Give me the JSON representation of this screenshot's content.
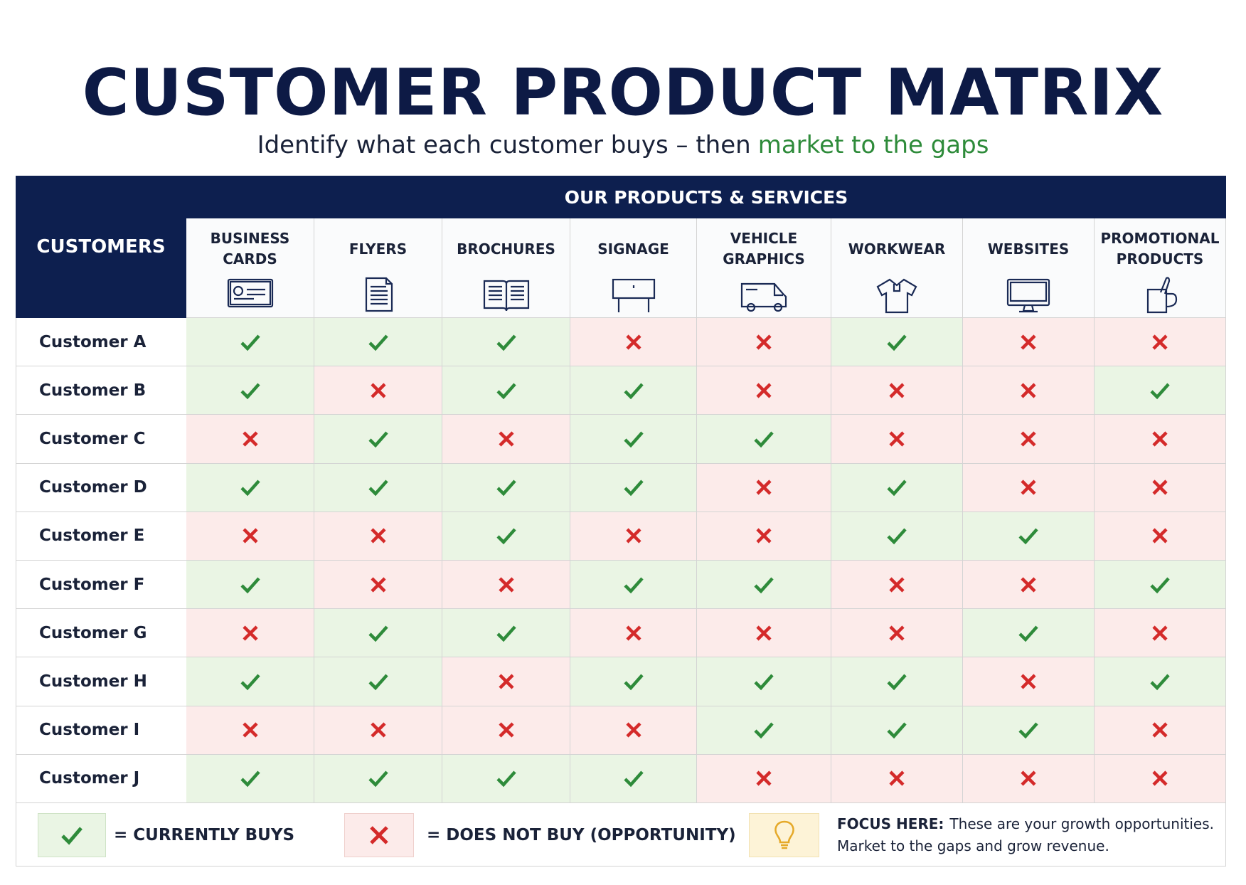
{
  "header": {
    "title": "CUSTOMER PRODUCT MATRIX",
    "subtitle": "Identify what each customer buys – then",
    "subtitle_highlight": "market to the gaps"
  },
  "table": {
    "corner": "CUSTOMERS",
    "group": "OUR PRODUCTS & SERVICES",
    "columns": [
      "BUSINESS CARDS",
      "FLYERS",
      "BROCHURES",
      "SIGNAGE",
      "VEHICLE GRAPHICS",
      "WORKWEAR",
      "WEBSITES",
      "PROMOTIONAL PRODUCTS"
    ],
    "rows": [
      {
        "name": "Customer A",
        "cells": [
          true,
          true,
          true,
          false,
          false,
          true,
          false,
          false
        ]
      },
      {
        "name": "Customer B",
        "cells": [
          true,
          false,
          true,
          true,
          false,
          false,
          false,
          true
        ]
      },
      {
        "name": "Customer C",
        "cells": [
          false,
          true,
          false,
          true,
          true,
          false,
          false,
          false
        ]
      },
      {
        "name": "Customer D",
        "cells": [
          true,
          true,
          true,
          true,
          false,
          true,
          false,
          false
        ]
      },
      {
        "name": "Customer E",
        "cells": [
          false,
          false,
          true,
          false,
          false,
          true,
          true,
          false
        ]
      },
      {
        "name": "Customer F",
        "cells": [
          true,
          false,
          false,
          true,
          true,
          false,
          false,
          true
        ]
      },
      {
        "name": "Customer G",
        "cells": [
          false,
          true,
          true,
          false,
          false,
          false,
          true,
          false
        ]
      },
      {
        "name": "Customer H",
        "cells": [
          true,
          true,
          false,
          true,
          true,
          true,
          false,
          true
        ]
      },
      {
        "name": "Customer I",
        "cells": [
          false,
          false,
          false,
          false,
          true,
          true,
          true,
          false
        ]
      },
      {
        "name": "Customer J",
        "cells": [
          true,
          true,
          true,
          true,
          false,
          false,
          false,
          false
        ]
      }
    ]
  },
  "legend": {
    "buys": "= CURRENTLY BUYS",
    "not_buys": "= DOES NOT BUY (OPPORTUNITY)",
    "focus_label": "FOCUS HERE:",
    "focus_text": "These are your growth opportunities. Market to the gaps and grow revenue."
  }
}
